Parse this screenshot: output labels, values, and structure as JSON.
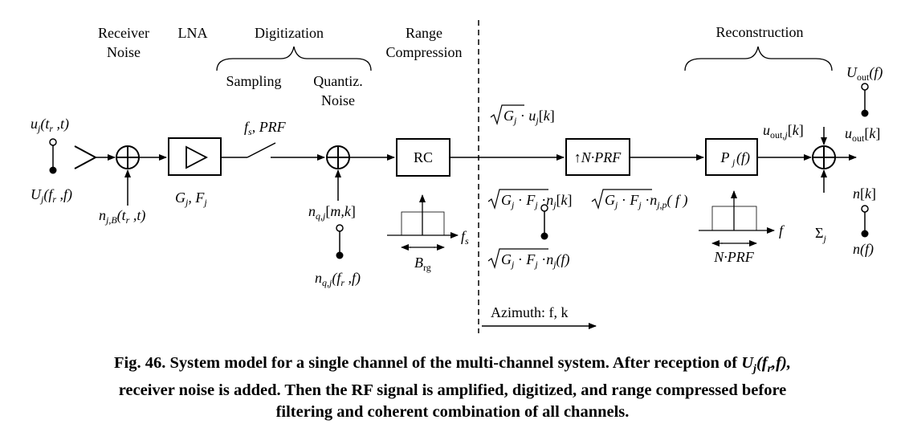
{
  "headers": {
    "receiver_noise": [
      "Receiver",
      "Noise"
    ],
    "lna": "LNA",
    "digitization": "Digitization",
    "sampling": "Sampling",
    "quantiz_noise": [
      "Quantiz.",
      "Noise"
    ],
    "range_compression": [
      "Range",
      "Compression"
    ],
    "reconstruction": "Reconstruction"
  },
  "blocks": {
    "rc": "RC",
    "nprf": "↑N·PRF",
    "pj": "P_j(f)"
  },
  "labels": {
    "u_j_tr_t": "u_j(t_r, t)",
    "U_j_fr_f": "U_j(f_r, f)",
    "n_jB": "n_j,B(t_r, t)",
    "gain": "G_j, F_j",
    "fs_prf": "f_s, PRF",
    "n_q_mk": "n_q,j[m,k]",
    "n_q_f": "n_q,j(f_r, f)",
    "sqrt_G_u": "√G_j · u_j[k]",
    "sqrt_GF_nk": "√(G_j·F_j) · n_j[k]",
    "sqrt_GF_np": "√(G_j·F_j) · n_j,p(f)",
    "sqrt_GF_nf": "√(G_j·F_j) · n_j(f)",
    "u_out_j": "u_out,j[k]",
    "U_out_f": "U_out(f)",
    "u_out_k": "u_out[k]",
    "n_k": "n[k]",
    "n_f": "n(f)",
    "sigma_j": "Σ_j",
    "B_rg": "B_rg",
    "f_s": "f_s",
    "f": "f",
    "N_PRF": "N·PRF",
    "azimuth": "Azimuth: f, k"
  },
  "caption": {
    "line1_prefix": "Fig. 46.  System model for a single channel of the multi-channel system. After reception of ",
    "line1_math": "U_j(f_r,f),",
    "line2": "receiver noise is added. Then the RF signal is amplified, digitized, and range compressed before",
    "line3": "filtering and coherent combination of all channels."
  }
}
